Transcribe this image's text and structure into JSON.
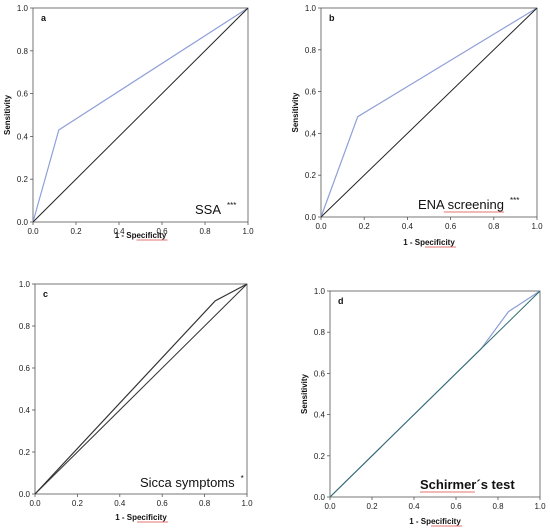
{
  "chart_data": [
    {
      "type": "line",
      "panel": "a",
      "xlabel": "1 - Specificity",
      "ylabel": "Sensitivity",
      "xlim": [
        0,
        1
      ],
      "ylim": [
        0,
        1
      ],
      "x_ticks": [
        "0.0",
        "0.2",
        "0.4",
        "0.6",
        "0.8",
        "1.0"
      ],
      "y_ticks": [
        "0.0",
        "0.2",
        "0.4",
        "0.6",
        "0.8",
        "1.0"
      ],
      "annotation": "SSA",
      "significance": "***",
      "series": [
        {
          "color": "#8f9fd8",
          "x": [
            0,
            0.12,
            1
          ],
          "y": [
            0,
            0.43,
            1
          ]
        },
        {
          "color": "#222222",
          "x": [
            0,
            1
          ],
          "y": [
            0,
            1
          ]
        }
      ]
    },
    {
      "type": "line",
      "panel": "b",
      "xlabel": "1 - Specificity",
      "ylabel": "Sensitivity",
      "xlim": [
        0,
        1
      ],
      "ylim": [
        0,
        1
      ],
      "x_ticks": [
        "0.0",
        "0.2",
        "0.4",
        "0.6",
        "0.8",
        "1.0"
      ],
      "y_ticks": [
        "0.0",
        "0.2",
        "0.4",
        "0.6",
        "0.8",
        "1.0"
      ],
      "annotation": "ENA screening",
      "significance": "***",
      "series": [
        {
          "color": "#8f9fd8",
          "x": [
            0,
            0.17,
            1
          ],
          "y": [
            0,
            0.48,
            1
          ]
        },
        {
          "color": "#222222",
          "x": [
            0,
            1
          ],
          "y": [
            0,
            1
          ]
        }
      ]
    },
    {
      "type": "line",
      "panel": "c",
      "xlabel": "1 - Specificity",
      "ylabel": "",
      "xlim": [
        0,
        1
      ],
      "ylim": [
        0,
        1
      ],
      "x_ticks": [
        "0.0",
        "0.2",
        "0.4",
        "0.6",
        "0.8",
        "1.0"
      ],
      "y_ticks": [
        "0.0",
        "0.2",
        "0.4",
        "0.6",
        "0.8",
        "1.0"
      ],
      "annotation": "Sicca symptoms",
      "significance": "*",
      "series": [
        {
          "color": "#333333",
          "x": [
            0,
            0.85,
            1
          ],
          "y": [
            0,
            0.92,
            1
          ]
        },
        {
          "color": "#333333",
          "x": [
            0,
            1
          ],
          "y": [
            0,
            1
          ]
        }
      ]
    },
    {
      "type": "line",
      "panel": "d",
      "xlabel": "1 - Specificity",
      "ylabel": "Sensitivity",
      "xlim": [
        0,
        1
      ],
      "ylim": [
        0,
        1
      ],
      "x_ticks": [
        "0.0",
        "0.2",
        "0.4",
        "0.6",
        "0.8",
        "1.0"
      ],
      "y_ticks": [
        "0.0",
        "0.2",
        "0.4",
        "0.6",
        "0.8",
        "1.0"
      ],
      "annotation": "Schirmer´s test",
      "significance": "",
      "series": [
        {
          "color": "#8f9fd8",
          "x": [
            0,
            0.72,
            0.85,
            1
          ],
          "y": [
            0,
            0.72,
            0.9,
            1
          ]
        },
        {
          "color": "#2e6b6b",
          "x": [
            0,
            1
          ],
          "y": [
            0,
            1
          ]
        }
      ]
    }
  ]
}
